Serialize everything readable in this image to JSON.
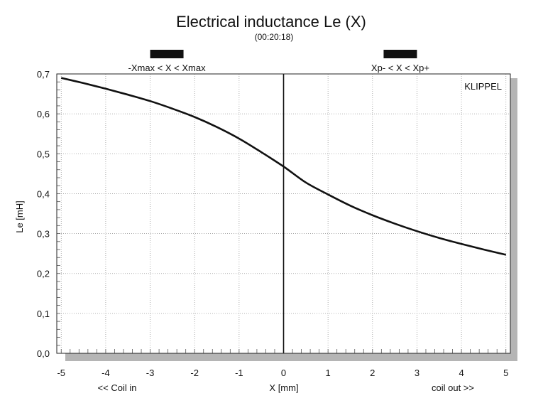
{
  "chart_data": {
    "type": "line",
    "title": "Electrical inductance Le (X)",
    "subtitle": "(00:20:18)",
    "xlabel": "X [mm]",
    "ylabel": "Le [mH]",
    "x_left_note": "<< Coil in",
    "x_right_note": "coil out >>",
    "brand": "KLIPPEL",
    "xlim": [
      -5.1,
      5.1
    ],
    "ylim": [
      0.0,
      0.7
    ],
    "x_ticks": [
      -5,
      -4,
      -3,
      -2,
      -1,
      0,
      1,
      2,
      3,
      4,
      5
    ],
    "x_tick_labels": [
      "-5",
      "-4",
      "-3",
      "-2",
      "-1",
      "0",
      "1",
      "2",
      "3",
      "4",
      "5"
    ],
    "y_ticks": [
      0.0,
      0.1,
      0.2,
      0.3,
      0.4,
      0.5,
      0.6,
      0.7
    ],
    "y_tick_labels": [
      "0,0",
      "0,1",
      "0,2",
      "0,3",
      "0,4",
      "0,5",
      "0,6",
      "0,7"
    ],
    "grid": true,
    "ranges": [
      {
        "label": "-Xmax < X < Xmax",
        "from": -3.0,
        "to": -2.25
      },
      {
        "label": "Xp- < X < Xp+",
        "from": 2.25,
        "to": 3.0
      }
    ],
    "series": [
      {
        "x": [
          -5.0,
          -4.5,
          -4.0,
          -3.5,
          -3.0,
          -2.5,
          -2.0,
          -1.5,
          -1.0,
          -0.5,
          0.0,
          0.5,
          1.0,
          1.5,
          2.0,
          2.5,
          3.0,
          3.5,
          4.0,
          4.5,
          5.0
        ],
        "y": [
          0.69,
          0.677,
          0.663,
          0.648,
          0.632,
          0.613,
          0.592,
          0.567,
          0.538,
          0.504,
          0.468,
          0.428,
          0.398,
          0.37,
          0.346,
          0.325,
          0.306,
          0.289,
          0.274,
          0.26,
          0.247
        ]
      }
    ]
  }
}
